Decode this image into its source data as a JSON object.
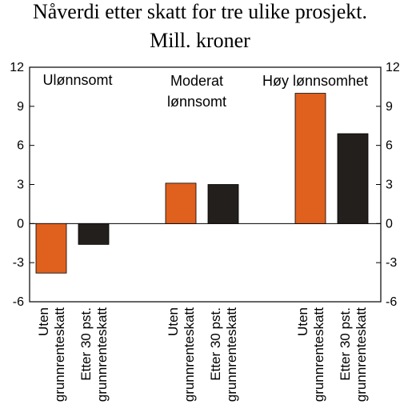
{
  "chart_data": {
    "type": "bar",
    "title": [
      "Nåverdi etter skatt for tre ulike prosjekt.",
      "Mill. kroner"
    ],
    "ylim": [
      -6,
      12
    ],
    "yticks": [
      -6,
      -3,
      0,
      3,
      6,
      9,
      12
    ],
    "y_axis_sides": [
      "left",
      "right"
    ],
    "grid": false,
    "legend": "none",
    "groups": [
      {
        "annotation": [
          "Ulønnsomt"
        ],
        "bars": [
          {
            "label": [
              "Uten",
              "grunnrenteskatt"
            ],
            "value": -3.8,
            "color": "#e0601e"
          },
          {
            "label": [
              "Etter 30 pst.",
              "grunnrenteskatt"
            ],
            "value": -1.6,
            "color": "#231f1c"
          }
        ]
      },
      {
        "annotation": [
          "Moderat",
          "lønnsomt"
        ],
        "bars": [
          {
            "label": [
              "Uten",
              "grunnrenteskatt"
            ],
            "value": 3.1,
            "color": "#e0601e"
          },
          {
            "label": [
              "Etter 30 pst.",
              "grunnrenteskatt"
            ],
            "value": 3.0,
            "color": "#231f1c"
          }
        ]
      },
      {
        "annotation": [
          "Høy lønnsomhet"
        ],
        "bars": [
          {
            "label": [
              "Uten",
              "grunnrenteskatt"
            ],
            "value": 10.0,
            "color": "#e0601e"
          },
          {
            "label": [
              "Etter 30 pst.",
              "grunnrenteskatt"
            ],
            "value": 6.9,
            "color": "#231f1c"
          }
        ]
      }
    ]
  }
}
